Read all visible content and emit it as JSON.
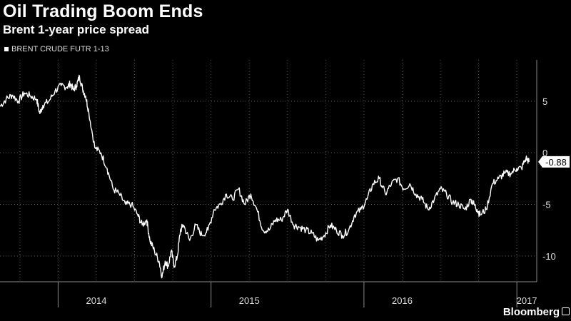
{
  "header": {
    "title": "Oil Trading Boom Ends",
    "subtitle": "Brent 1-year price spread"
  },
  "legend": {
    "label": "BRENT CRUDE FUTR 1-13"
  },
  "footer": {
    "brand": "Bloomberg"
  },
  "colors": {
    "background": "#000000",
    "line": "#ffffff",
    "grid": "#555555",
    "text": "#dddddd"
  },
  "chart_data": {
    "type": "line",
    "title": "Oil Trading Boom Ends",
    "subtitle": "Brent 1-year price spread",
    "xlabel": "",
    "ylabel": "",
    "ylim": [
      -12.5,
      9
    ],
    "yticks": [
      5,
      0,
      -5,
      -10
    ],
    "xlim": [
      2013.62,
      2017.13
    ],
    "x_year_labels": [
      "2014",
      "2015",
      "2016",
      "2017"
    ],
    "grid": true,
    "legend_position": "top-left",
    "last_value_label": "-0.88",
    "series": [
      {
        "name": "BRENT CRUDE FUTR 1-13",
        "x": [
          2013.62,
          2013.66,
          2013.7,
          2013.74,
          2013.78,
          2013.82,
          2013.86,
          2013.88,
          2013.9,
          2013.94,
          2013.98,
          2014.02,
          2014.06,
          2014.08,
          2014.1,
          2014.12,
          2014.14,
          2014.16,
          2014.18,
          2014.2,
          2014.24,
          2014.28,
          2014.32,
          2014.36,
          2014.4,
          2014.44,
          2014.48,
          2014.52,
          2014.55,
          2014.58,
          2014.6,
          2014.63,
          2014.66,
          2014.68,
          2014.7,
          2014.72,
          2014.74,
          2014.76,
          2014.78,
          2014.8,
          2014.82,
          2014.86,
          2014.9,
          2014.94,
          2014.98,
          2015.02,
          2015.06,
          2015.1,
          2015.14,
          2015.18,
          2015.22,
          2015.26,
          2015.3,
          2015.34,
          2015.38,
          2015.42,
          2015.46,
          2015.5,
          2015.54,
          2015.58,
          2015.62,
          2015.66,
          2015.7,
          2015.74,
          2015.78,
          2015.82,
          2015.86,
          2015.9,
          2015.94,
          2015.98,
          2016.02,
          2016.06,
          2016.1,
          2016.14,
          2016.18,
          2016.22,
          2016.26,
          2016.3,
          2016.34,
          2016.38,
          2016.42,
          2016.46,
          2016.5,
          2016.54,
          2016.58,
          2016.62,
          2016.66,
          2016.7,
          2016.72,
          2016.74,
          2016.76,
          2016.8,
          2016.84,
          2016.88,
          2016.92,
          2016.96,
          2017.0,
          2017.03,
          2017.06,
          2017.08
        ],
        "y": [
          4.5,
          5.2,
          5.6,
          5.0,
          5.8,
          5.5,
          5.2,
          3.8,
          4.6,
          5.0,
          6.0,
          6.5,
          6.4,
          6.7,
          6.1,
          6.5,
          7.4,
          6.2,
          5.5,
          4.0,
          0.5,
          0.0,
          -1.5,
          -3.5,
          -4.0,
          -5.0,
          -5.0,
          -6.0,
          -7.0,
          -6.5,
          -8.5,
          -9.5,
          -10.5,
          -12.0,
          -10.5,
          -11.0,
          -9.5,
          -11.0,
          -10.0,
          -7.5,
          -7.0,
          -8.5,
          -7.0,
          -8.0,
          -7.5,
          -5.5,
          -5.0,
          -4.0,
          -4.5,
          -3.5,
          -5.0,
          -4.0,
          -5.5,
          -7.5,
          -7.5,
          -6.5,
          -6.5,
          -5.5,
          -7.0,
          -7.2,
          -7.5,
          -7.8,
          -8.5,
          -8.0,
          -7.0,
          -7.5,
          -8.0,
          -7.5,
          -6.0,
          -5.5,
          -4.5,
          -3.0,
          -2.5,
          -4.0,
          -3.0,
          -2.5,
          -3.5,
          -3.0,
          -4.0,
          -4.5,
          -5.5,
          -4.5,
          -3.5,
          -4.0,
          -4.8,
          -5.0,
          -5.5,
          -4.5,
          -5.0,
          -5.5,
          -6.0,
          -5.5,
          -3.0,
          -2.5,
          -2.0,
          -2.0,
          -1.5,
          -1.5,
          -0.5,
          -0.88
        ]
      }
    ]
  }
}
